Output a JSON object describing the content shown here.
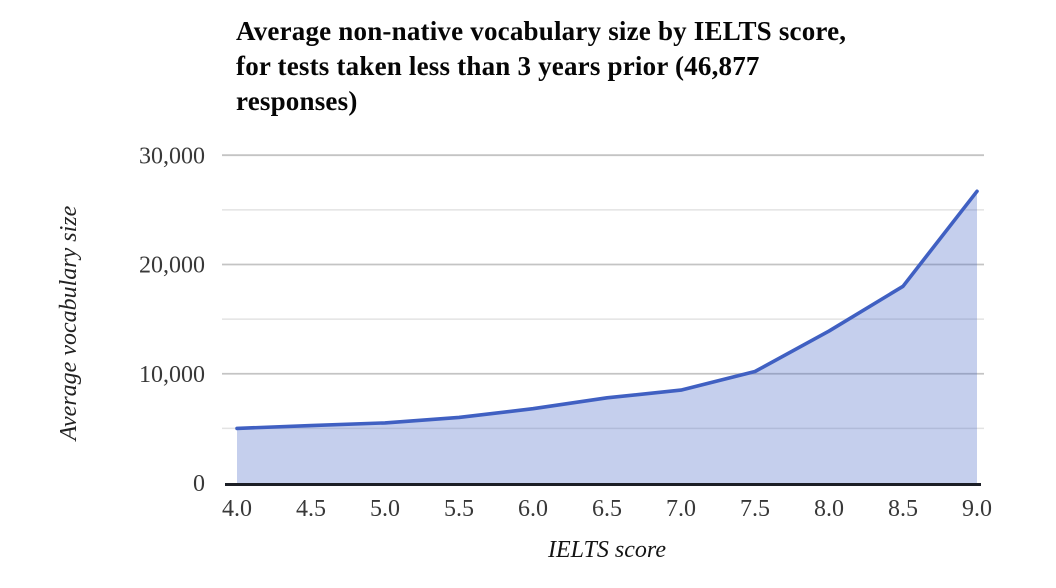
{
  "header": {
    "title_lines": [
      "Average non-native vocabulary size by IELTS score,",
      "for tests taken less than 3 years prior (46,877",
      "responses)"
    ]
  },
  "chart_data": {
    "type": "area",
    "title": "Average non-native vocabulary size by IELTS score, for tests taken less than 3 years prior (46,877 responses)",
    "xlabel": "IELTS score",
    "ylabel": "Average vocabulary size",
    "x": [
      4.0,
      4.5,
      5.0,
      5.5,
      6.0,
      6.5,
      7.0,
      7.5,
      8.0,
      8.5,
      9.0
    ],
    "series": [
      {
        "name": "Average vocabulary size",
        "values": [
          5000,
          5250,
          5500,
          6000,
          6800,
          7800,
          8500,
          10200,
          13900,
          18000,
          26700
        ]
      }
    ],
    "xlim": [
      4.0,
      9.0
    ],
    "ylim": [
      0,
      30000
    ],
    "x_tick_labels": [
      "4.0",
      "4.5",
      "5.0",
      "5.5",
      "6.0",
      "6.5",
      "7.0",
      "7.5",
      "8.0",
      "8.5",
      "9.0"
    ],
    "y_tick_labels": [
      {
        "value": 0,
        "label": "0"
      },
      {
        "value": 10000,
        "label": "10,000"
      },
      {
        "value": 20000,
        "label": "20,000"
      },
      {
        "value": 30000,
        "label": "30,000"
      }
    ],
    "gridlines": {
      "major": [
        10000,
        20000,
        30000
      ],
      "minor": [
        5000,
        15000,
        25000
      ],
      "grid_on": true
    },
    "legend": "none",
    "colors": {
      "line": "#4060c2",
      "fill_opacity": 0.3,
      "grid_major": "#c4c4c4",
      "grid_minor": "#e3e3e3",
      "axis": "#1c1f26",
      "tick_text": "#383838",
      "title_text": "#060606"
    }
  }
}
